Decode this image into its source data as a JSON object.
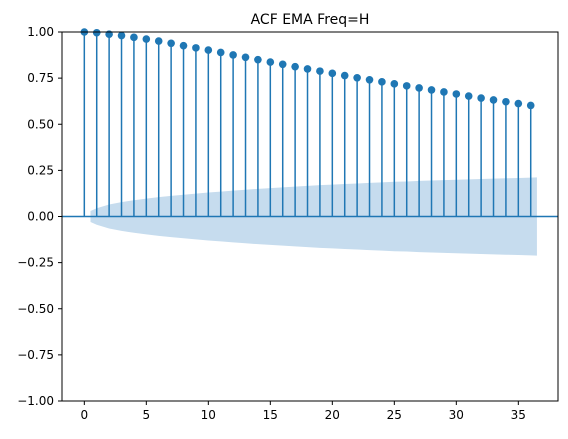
{
  "chart_data": {
    "type": "stem",
    "title": "ACF EMA Freq=H",
    "xlabel": "",
    "ylabel": "",
    "xlim": [
      -1.8,
      38.2
    ],
    "ylim": [
      -1.0,
      1.0
    ],
    "x_ticks": [
      0,
      5,
      10,
      15,
      20,
      25,
      30,
      35
    ],
    "y_ticks": [
      -1.0,
      -0.75,
      -0.5,
      -0.25,
      0.0,
      0.25,
      0.5,
      0.75,
      1.0
    ],
    "x_tick_labels": [
      "0",
      "5",
      "10",
      "15",
      "20",
      "25",
      "30",
      "35"
    ],
    "y_tick_labels": [
      "−1.00",
      "−0.75",
      "−0.50",
      "−0.25",
      "0.00",
      "0.25",
      "0.50",
      "0.75",
      "1.00"
    ],
    "grid": false,
    "legend": "none",
    "series": [
      {
        "lags": [
          0,
          1,
          2,
          3,
          4,
          5,
          6,
          7,
          8,
          9,
          10,
          11,
          12,
          13,
          14,
          15,
          16,
          17,
          18,
          19,
          20,
          21,
          22,
          23,
          24,
          25,
          26,
          27,
          28,
          29,
          30,
          31,
          32,
          33,
          34,
          35,
          36
        ],
        "values": [
          1.0,
          0.996,
          0.988,
          0.981,
          0.971,
          0.962,
          0.951,
          0.939,
          0.926,
          0.914,
          0.902,
          0.889,
          0.876,
          0.863,
          0.85,
          0.837,
          0.825,
          0.812,
          0.8,
          0.788,
          0.776,
          0.764,
          0.752,
          0.741,
          0.73,
          0.719,
          0.708,
          0.697,
          0.686,
          0.675,
          0.664,
          0.653,
          0.642,
          0.632,
          0.622,
          0.612,
          0.602
        ]
      }
    ],
    "confidence_band": {
      "lags": [
        0.5,
        1,
        1.5,
        2,
        3,
        4,
        5,
        6,
        7,
        8,
        9,
        10,
        11,
        12,
        13,
        14,
        15,
        16,
        17,
        18,
        19,
        20,
        21,
        22,
        23,
        24,
        25,
        26,
        27,
        28,
        29,
        30,
        31,
        32,
        33,
        34,
        35,
        36,
        36.5
      ],
      "upper": [
        0.03,
        0.045,
        0.055,
        0.065,
        0.078,
        0.088,
        0.097,
        0.105,
        0.112,
        0.118,
        0.124,
        0.13,
        0.135,
        0.14,
        0.145,
        0.15,
        0.154,
        0.158,
        0.162,
        0.166,
        0.17,
        0.173,
        0.176,
        0.179,
        0.182,
        0.185,
        0.188,
        0.19,
        0.193,
        0.195,
        0.197,
        0.199,
        0.201,
        0.203,
        0.205,
        0.207,
        0.209,
        0.211,
        0.212
      ]
    },
    "colors": {
      "stem": "#1f77b4",
      "band": "#c6dcee",
      "axis": "#000000",
      "text": "#000000"
    }
  }
}
